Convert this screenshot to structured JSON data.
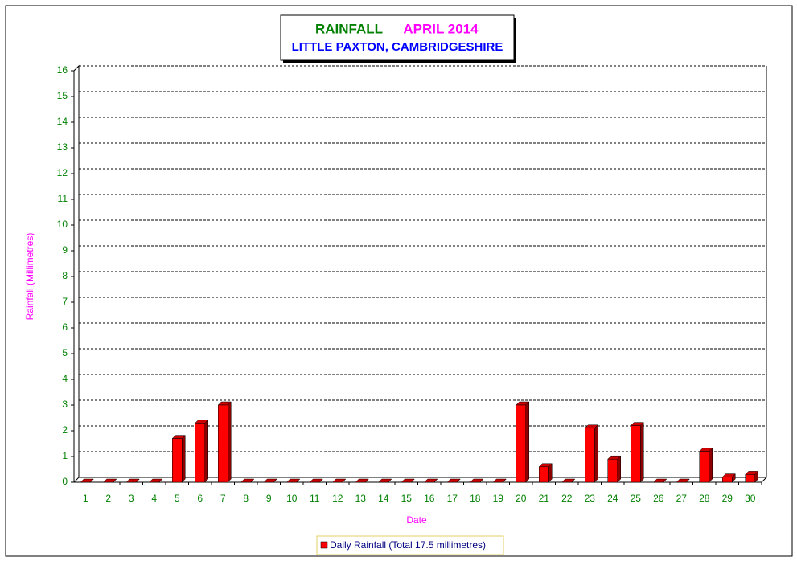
{
  "chart_data": {
    "type": "bar",
    "title": "RAINFALL",
    "period": "APRIL 2014",
    "subtitle": "LITTLE PAXTON, CAMBRIDGESHIRE",
    "x_label": "Date",
    "y_label": "Rainfall  (Millimetres)",
    "categories": [
      "1",
      "2",
      "3",
      "4",
      "5",
      "6",
      "7",
      "8",
      "9",
      "10",
      "11",
      "12",
      "13",
      "14",
      "15",
      "16",
      "17",
      "18",
      "19",
      "20",
      "21",
      "22",
      "23",
      "24",
      "25",
      "26",
      "27",
      "28",
      "29",
      "30"
    ],
    "series": [
      {
        "name": "Daily Rainfall (Total 17.5 millimetres)",
        "color": "#ff0000",
        "values": [
          0,
          0,
          0,
          0,
          1.7,
          2.3,
          3,
          0,
          0,
          0,
          0,
          0,
          0,
          0,
          0,
          0,
          0,
          0,
          0,
          3,
          0.6,
          0,
          2.1,
          0.9,
          2.2,
          0,
          0,
          1.2,
          0.2,
          0.3
        ]
      }
    ],
    "ylim": [
      0,
      16
    ],
    "yticks": [
      0,
      1,
      2,
      3,
      4,
      5,
      6,
      7,
      8,
      9,
      10,
      11,
      12,
      13,
      14,
      15,
      16
    ],
    "grid": true
  }
}
